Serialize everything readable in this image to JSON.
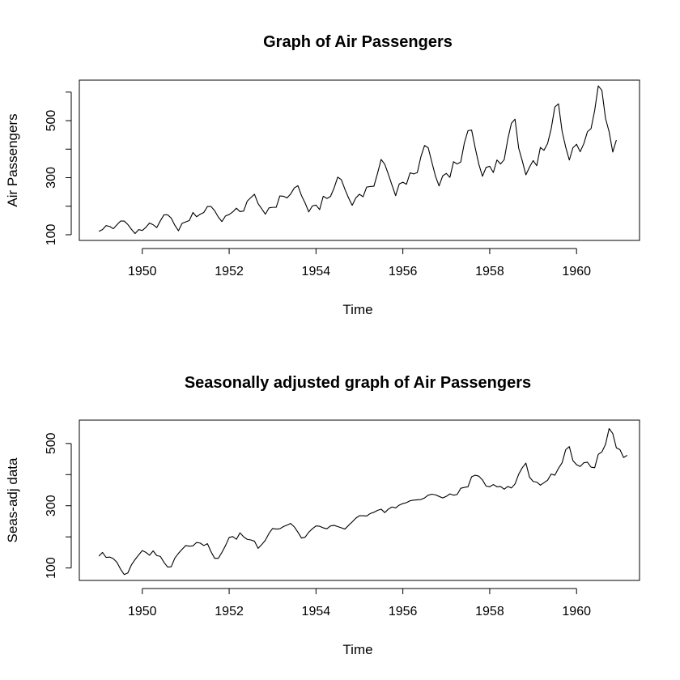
{
  "chart_data": [
    {
      "type": "line",
      "title": "Graph of Air Passengers",
      "xlabel": "Time",
      "ylabel": "Air Passengers",
      "xlim": [
        1948.55,
        1961.45
      ],
      "ylim": [
        80,
        642
      ],
      "x_ticks": [
        1950,
        1952,
        1954,
        1956,
        1958,
        1960
      ],
      "y_ticks": [
        100,
        300,
        500
      ],
      "x_start": 1949,
      "x_step": 0.0833333,
      "values": [
        112,
        118,
        132,
        129,
        121,
        135,
        148,
        148,
        136,
        119,
        104,
        118,
        115,
        126,
        141,
        135,
        125,
        149,
        170,
        170,
        158,
        133,
        114,
        140,
        145,
        150,
        178,
        163,
        172,
        178,
        199,
        199,
        184,
        162,
        146,
        166,
        171,
        180,
        193,
        181,
        183,
        218,
        230,
        242,
        209,
        191,
        172,
        194,
        196,
        196,
        236,
        235,
        229,
        243,
        264,
        272,
        237,
        211,
        180,
        201,
        204,
        188,
        235,
        227,
        234,
        264,
        302,
        293,
        259,
        229,
        203,
        229,
        242,
        233,
        267,
        269,
        270,
        315,
        364,
        347,
        312,
        274,
        237,
        278,
        284,
        277,
        317,
        313,
        318,
        374,
        413,
        405,
        355,
        306,
        271,
        306,
        315,
        301,
        356,
        348,
        355,
        422,
        465,
        467,
        404,
        347,
        305,
        336,
        340,
        318,
        362,
        348,
        363,
        435,
        491,
        505,
        404,
        359,
        310,
        337,
        360,
        342,
        406,
        396,
        420,
        472,
        548,
        559,
        463,
        407,
        362,
        405,
        417,
        391,
        419,
        461,
        472,
        535,
        622,
        606,
        508,
        461,
        390,
        432
      ]
    },
    {
      "type": "line",
      "title": "Seasonally adjusted graph of Air Passengers",
      "xlabel": "Time",
      "ylabel": "Seas-adj data",
      "xlim": [
        1948.55,
        1961.45
      ],
      "ylim": [
        60,
        575
      ],
      "x_ticks": [
        1950,
        1952,
        1954,
        1956,
        1958,
        1960
      ],
      "y_ticks": [
        100,
        300,
        500
      ],
      "x_start": 1949,
      "x_step": 0.0833333,
      "values": [
        138,
        150,
        134,
        135,
        130,
        118,
        96,
        79,
        84,
        110,
        127,
        142,
        156,
        150,
        141,
        155,
        140,
        137,
        118,
        103,
        104,
        132,
        147,
        160,
        172,
        170,
        171,
        182,
        180,
        172,
        178,
        152,
        131,
        131,
        150,
        172,
        198,
        201,
        192,
        213,
        200,
        192,
        190,
        186,
        163,
        175,
        189,
        211,
        227,
        225,
        226,
        233,
        238,
        243,
        232,
        215,
        196,
        199,
        215,
        226,
        235,
        234,
        229,
        226,
        235,
        237,
        233,
        229,
        225,
        237,
        248,
        260,
        268,
        268,
        267,
        275,
        279,
        285,
        289,
        278,
        289,
        296,
        293,
        302,
        307,
        310,
        316,
        318,
        319,
        320,
        325,
        334,
        337,
        335,
        330,
        325,
        330,
        338,
        334,
        336,
        356,
        359,
        361,
        393,
        398,
        395,
        383,
        363,
        361,
        368,
        361,
        362,
        353,
        362,
        357,
        370,
        401,
        422,
        437,
        392,
        378,
        376,
        366,
        374,
        382,
        402,
        398,
        420,
        438,
        480,
        490,
        445,
        432,
        426,
        438,
        440,
        424,
        422,
        465,
        473,
        497,
        548,
        532,
        486,
        480,
        455,
        462
      ]
    }
  ]
}
